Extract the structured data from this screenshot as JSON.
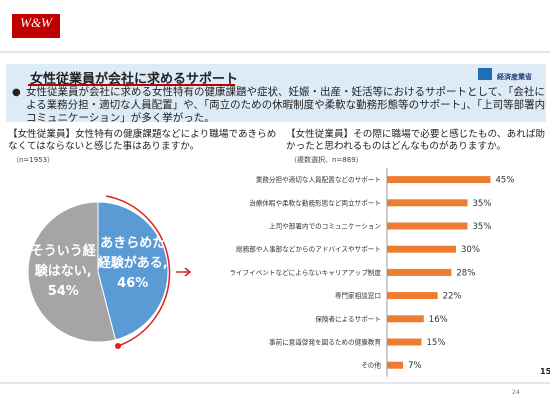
{
  "logo": "W&W",
  "ministry": "経済産業省",
  "title": "女性従業員が会社に求めるサポート",
  "bullet": "女性従業員が会社に求める女性特有の健康課題や症状、妊娠・出産・妊活等におけるサポートとして、「会社による業務分担・適切な人員配置」や、「両立のための休暇制度や柔軟な勤務形態等のサポート」、「上司等部署内コミュニケーション」が多く挙がった。",
  "edge_text": "15",
  "page_number": "24",
  "chart_data": [
    {
      "type": "pie",
      "title": "【女性従業員】女性特有の健康課題などにより職場であきらめなくてはならないと感じた事はありますか。",
      "subtitle": "（n=1953）",
      "categories": [
        "そういう経験はない,",
        "あきらめた経験がある,"
      ],
      "values": [
        54,
        46
      ],
      "value_labels": [
        "54%",
        "46%"
      ],
      "colors": [
        "#a5a5a5",
        "#5b9bd5"
      ]
    },
    {
      "type": "hbar",
      "title": "【女性従業員】その際に職場で必要と感じたもの、あれば助かったと思われるものはどんなものがありますか。",
      "subtitle": "（複数選択、n=889）",
      "categories": [
        "業務分担や適切な人員配置などのサポート",
        "治療休暇や柔軟な勤務形態など両立サポート",
        "上司や部署内でのコミュニケーション",
        "総務部や人事部などからのアドバイスやサポート",
        "ライフイベントなどによらないキャリアアップ制度",
        "専門家相談窓口",
        "保険者によるサポート",
        "事前に意識啓発を図るための健康教育",
        "その他"
      ],
      "values": [
        45,
        35,
        35,
        30,
        28,
        22,
        16,
        15,
        7
      ],
      "value_labels": [
        "45%",
        "35%",
        "35%",
        "30%",
        "28%",
        "22%",
        "16%",
        "15%",
        "7%"
      ],
      "color": "#ed7d31",
      "xlim": [
        0,
        50
      ]
    }
  ]
}
